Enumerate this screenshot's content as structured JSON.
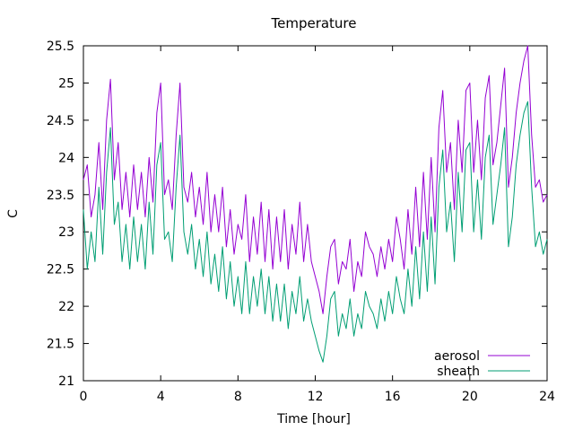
{
  "chart_data": {
    "type": "line",
    "title": "Temperature",
    "xlabel": "Time [hour]",
    "ylabel": "C",
    "xlim": [
      0,
      24
    ],
    "ylim": [
      21,
      25.5
    ],
    "xticks": [
      0,
      4,
      8,
      12,
      16,
      20,
      24
    ],
    "yticks": [
      21,
      21.5,
      22,
      22.5,
      23,
      23.5,
      24,
      24.5,
      25,
      25.5
    ],
    "legend_position": "bottom-right",
    "series": [
      {
        "name": "aerosol",
        "color": "#9400d3",
        "x": [
          0.0,
          0.2,
          0.4,
          0.6,
          0.8,
          1.0,
          1.2,
          1.4,
          1.6,
          1.8,
          2.0,
          2.2,
          2.4,
          2.6,
          2.8,
          3.0,
          3.2,
          3.4,
          3.6,
          3.8,
          4.0,
          4.2,
          4.4,
          4.6,
          4.8,
          5.0,
          5.2,
          5.4,
          5.6,
          5.8,
          6.0,
          6.2,
          6.4,
          6.6,
          6.8,
          7.0,
          7.2,
          7.4,
          7.6,
          7.8,
          8.0,
          8.2,
          8.4,
          8.6,
          8.8,
          9.0,
          9.2,
          9.4,
          9.6,
          9.8,
          10.0,
          10.2,
          10.4,
          10.6,
          10.8,
          11.0,
          11.2,
          11.4,
          11.6,
          11.8,
          12.0,
          12.2,
          12.4,
          12.6,
          12.8,
          13.0,
          13.2,
          13.4,
          13.6,
          13.8,
          14.0,
          14.2,
          14.4,
          14.6,
          14.8,
          15.0,
          15.2,
          15.4,
          15.6,
          15.8,
          16.0,
          16.2,
          16.4,
          16.6,
          16.8,
          17.0,
          17.2,
          17.4,
          17.6,
          17.8,
          18.0,
          18.2,
          18.4,
          18.6,
          18.8,
          19.0,
          19.2,
          19.4,
          19.6,
          19.8,
          20.0,
          20.2,
          20.4,
          20.6,
          20.8,
          21.0,
          21.2,
          21.4,
          21.6,
          21.8,
          22.0,
          22.2,
          22.4,
          22.6,
          22.8,
          23.0,
          23.2,
          23.4,
          23.6,
          23.8,
          24.0
        ],
        "y": [
          23.7,
          23.9,
          23.2,
          23.5,
          24.2,
          23.3,
          24.5,
          25.05,
          23.7,
          24.2,
          23.3,
          23.8,
          23.2,
          23.9,
          23.3,
          23.8,
          23.2,
          24.0,
          23.4,
          24.6,
          25.0,
          23.5,
          23.7,
          23.3,
          24.3,
          25.0,
          23.6,
          23.4,
          23.8,
          23.2,
          23.6,
          23.1,
          23.8,
          23.0,
          23.5,
          23.0,
          23.6,
          22.8,
          23.3,
          22.7,
          23.1,
          22.9,
          23.5,
          22.6,
          23.2,
          22.7,
          23.4,
          22.6,
          23.3,
          22.5,
          23.2,
          22.6,
          23.3,
          22.5,
          23.1,
          22.7,
          23.4,
          22.6,
          23.1,
          22.6,
          22.4,
          22.2,
          21.9,
          22.4,
          22.8,
          22.9,
          22.3,
          22.6,
          22.5,
          22.9,
          22.2,
          22.6,
          22.4,
          23.0,
          22.8,
          22.7,
          22.4,
          22.8,
          22.5,
          22.9,
          22.6,
          23.2,
          22.9,
          22.5,
          23.3,
          22.7,
          23.6,
          22.8,
          23.8,
          22.9,
          24.0,
          23.0,
          24.4,
          24.9,
          23.8,
          24.2,
          23.3,
          24.5,
          23.8,
          24.9,
          25.0,
          23.8,
          24.5,
          23.7,
          24.8,
          25.1,
          23.9,
          24.2,
          24.7,
          25.2,
          23.6,
          24.0,
          24.6,
          25.0,
          25.3,
          25.5,
          24.3,
          23.6,
          23.7,
          23.4,
          23.5
        ]
      },
      {
        "name": "sheath",
        "color": "#009e73",
        "x": [
          0.0,
          0.2,
          0.4,
          0.6,
          0.8,
          1.0,
          1.2,
          1.4,
          1.6,
          1.8,
          2.0,
          2.2,
          2.4,
          2.6,
          2.8,
          3.0,
          3.2,
          3.4,
          3.6,
          3.8,
          4.0,
          4.2,
          4.4,
          4.6,
          4.8,
          5.0,
          5.2,
          5.4,
          5.6,
          5.8,
          6.0,
          6.2,
          6.4,
          6.6,
          6.8,
          7.0,
          7.2,
          7.4,
          7.6,
          7.8,
          8.0,
          8.2,
          8.4,
          8.6,
          8.8,
          9.0,
          9.2,
          9.4,
          9.6,
          9.8,
          10.0,
          10.2,
          10.4,
          10.6,
          10.8,
          11.0,
          11.2,
          11.4,
          11.6,
          11.8,
          12.0,
          12.2,
          12.4,
          12.6,
          12.8,
          13.0,
          13.2,
          13.4,
          13.6,
          13.8,
          14.0,
          14.2,
          14.4,
          14.6,
          14.8,
          15.0,
          15.2,
          15.4,
          15.6,
          15.8,
          16.0,
          16.2,
          16.4,
          16.6,
          16.8,
          17.0,
          17.2,
          17.4,
          17.6,
          17.8,
          18.0,
          18.2,
          18.4,
          18.6,
          18.8,
          19.0,
          19.2,
          19.4,
          19.6,
          19.8,
          20.0,
          20.2,
          20.4,
          20.6,
          20.8,
          21.0,
          21.2,
          21.4,
          21.6,
          21.8,
          22.0,
          22.2,
          22.4,
          22.6,
          22.8,
          23.0,
          23.2,
          23.4,
          23.6,
          23.8,
          24.0
        ],
        "y": [
          23.3,
          22.5,
          23.0,
          22.6,
          23.6,
          22.7,
          23.8,
          24.4,
          23.1,
          23.4,
          22.6,
          23.1,
          22.5,
          23.2,
          22.6,
          23.1,
          22.5,
          23.4,
          22.7,
          23.9,
          24.2,
          22.9,
          23.0,
          22.6,
          23.6,
          24.3,
          23.0,
          22.7,
          23.1,
          22.5,
          22.9,
          22.4,
          23.0,
          22.3,
          22.7,
          22.2,
          22.8,
          22.1,
          22.6,
          22.0,
          22.4,
          21.9,
          22.6,
          21.9,
          22.4,
          22.0,
          22.5,
          21.9,
          22.4,
          21.8,
          22.3,
          21.8,
          22.3,
          21.7,
          22.2,
          21.9,
          22.4,
          21.8,
          22.1,
          21.8,
          21.6,
          21.4,
          21.25,
          21.6,
          22.1,
          22.2,
          21.6,
          21.9,
          21.7,
          22.1,
          21.6,
          21.9,
          21.7,
          22.2,
          22.0,
          21.9,
          21.7,
          22.1,
          21.8,
          22.2,
          21.9,
          22.4,
          22.1,
          21.9,
          22.5,
          22.0,
          22.8,
          22.1,
          23.0,
          22.2,
          23.2,
          22.3,
          23.6,
          24.1,
          23.0,
          23.4,
          22.6,
          23.8,
          23.0,
          24.1,
          24.2,
          23.0,
          23.7,
          22.9,
          24.0,
          24.3,
          23.1,
          23.5,
          23.9,
          24.4,
          22.8,
          23.2,
          23.9,
          24.3,
          24.6,
          24.75,
          23.6,
          22.8,
          23.0,
          22.7,
          22.9
        ]
      }
    ]
  }
}
